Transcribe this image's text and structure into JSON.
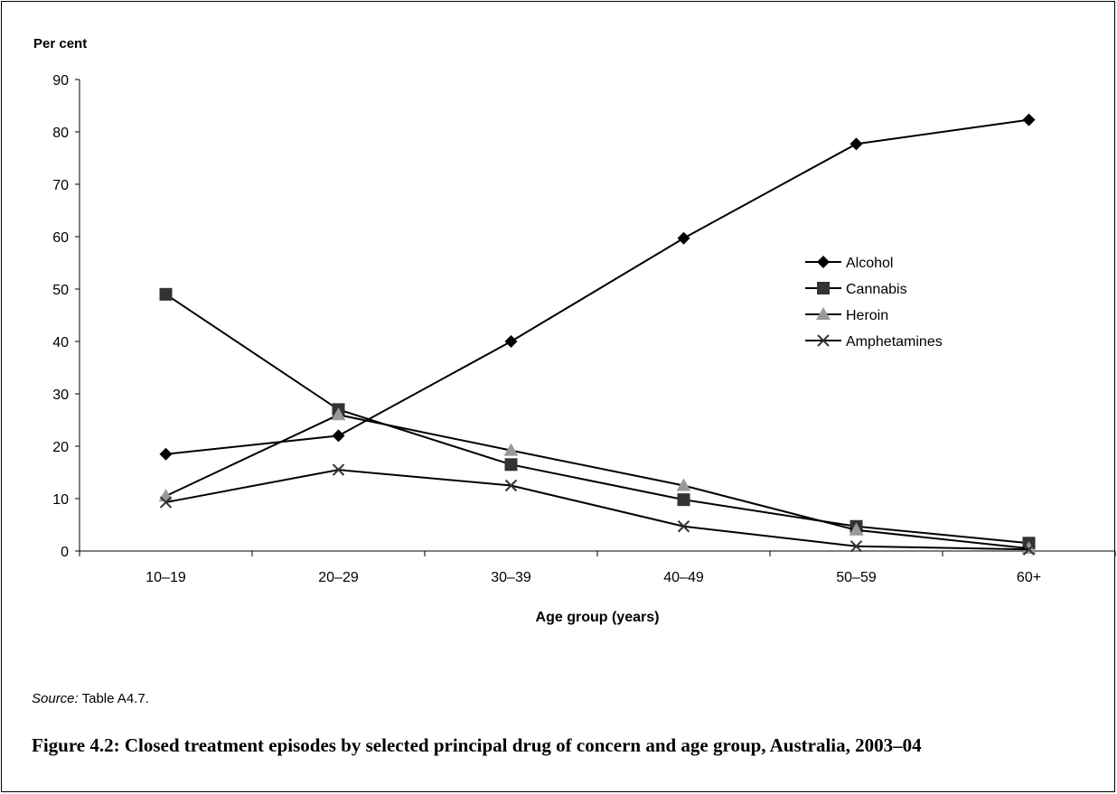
{
  "caption": "Figure 4.2: Closed treatment episodes by selected principal drug of concern and age group, Australia, 2003–04",
  "source": {
    "label": "Source:",
    "text": "Table A4.7."
  },
  "chart_data": {
    "type": "line",
    "title": "",
    "ylabel": "Per cent",
    "xlabel": "Age group (years)",
    "categories": [
      "10–19",
      "20–29",
      "30–39",
      "40–49",
      "50–59",
      "60+"
    ],
    "ylim": [
      0,
      90
    ],
    "yticks": [
      "0",
      "10",
      "20",
      "30",
      "40",
      "50",
      "60",
      "70",
      "80",
      "90"
    ],
    "grid": false,
    "legend_position": "right",
    "series": [
      {
        "name": "Alcohol",
        "marker": "diamond",
        "color": "#000000",
        "values": [
          18.5,
          22,
          40,
          59.7,
          77.7,
          82.3
        ]
      },
      {
        "name": "Cannabis",
        "marker": "square",
        "color": "#333333",
        "values": [
          49,
          27,
          16.5,
          9.8,
          4.7,
          1.5
        ]
      },
      {
        "name": "Heroin",
        "marker": "triangle",
        "color": "#999999",
        "values": [
          10.5,
          26,
          19.2,
          12.5,
          4,
          0.5
        ]
      },
      {
        "name": "Amphetamines",
        "marker": "x",
        "color": "#333333",
        "values": [
          9.3,
          15.5,
          12.5,
          4.7,
          0.9,
          0.3
        ]
      }
    ]
  }
}
